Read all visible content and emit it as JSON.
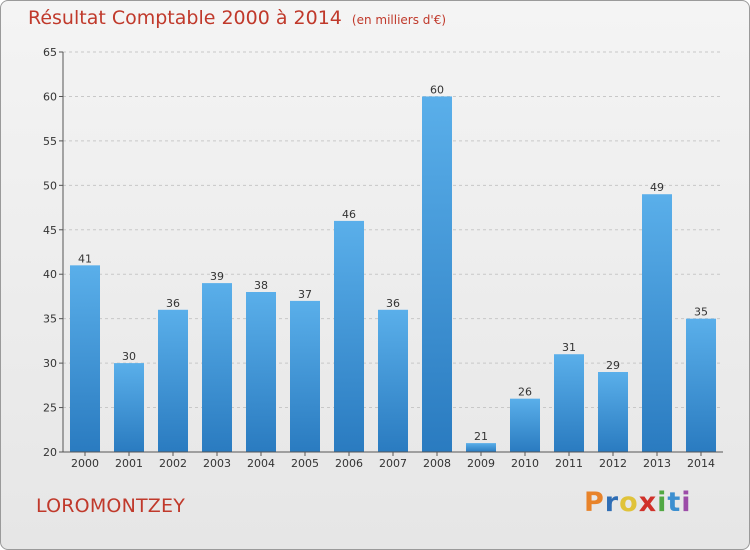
{
  "page": {
    "title": "Résultat Comptable 2000 à 2014",
    "subtitle": "(en milliers d'€)",
    "location": "LOROMONTZEY",
    "logo": {
      "letters": [
        "P",
        "r",
        "o",
        "x",
        "i",
        "t",
        "i"
      ],
      "colors": [
        "#e8832a",
        "#2f6eb5",
        "#e0c33a",
        "#d0322a",
        "#52a843",
        "#3c8fd0",
        "#9c4ca8"
      ]
    }
  },
  "chart_data": {
    "type": "bar",
    "title": "Résultat Comptable 2000 à 2014",
    "subtitle": "(en milliers d'€)",
    "categories": [
      "2000",
      "2001",
      "2002",
      "2003",
      "2004",
      "2005",
      "2006",
      "2007",
      "2008",
      "2009",
      "2010",
      "2011",
      "2012",
      "2013",
      "2014"
    ],
    "values": [
      41,
      30,
      36,
      39,
      38,
      37,
      46,
      36,
      60,
      21,
      26,
      31,
      29,
      49,
      35
    ],
    "ylim": [
      20,
      65
    ],
    "yticks": [
      20,
      25,
      30,
      35,
      40,
      45,
      50,
      55,
      60,
      65
    ],
    "xlabel": "",
    "ylabel": "",
    "grid": true,
    "colors": {
      "bar_top": "#5aafea",
      "bar_bottom": "#2a7bc0",
      "grid": "#c8c8c8",
      "axis": "#555555"
    }
  }
}
